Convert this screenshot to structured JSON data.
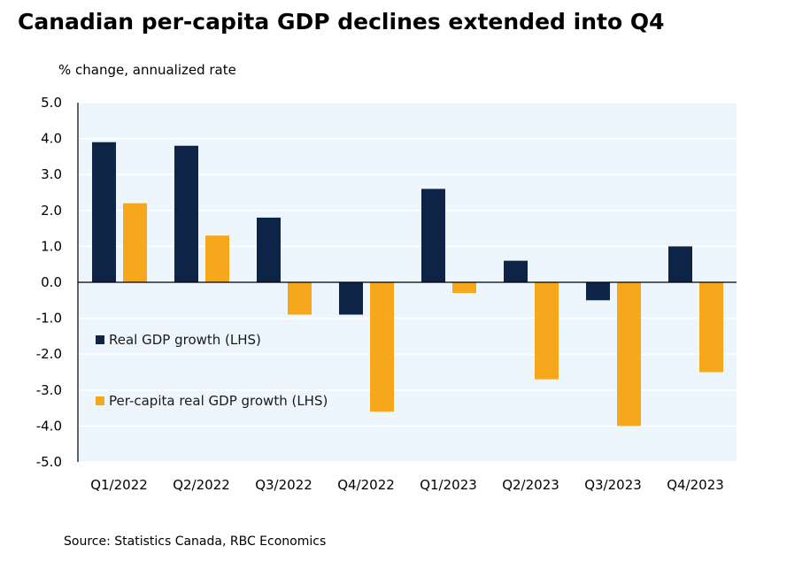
{
  "header": {
    "title": "Canadian per-capita GDP declines extended into Q4",
    "subtitle": "% change, annualized rate"
  },
  "footer": {
    "source": "Source: Statistics Canada, RBC Economics"
  },
  "colors": {
    "real_gdp": "#0d2446",
    "per_capita": "#f7a71b",
    "plot_bg": "#eef6fd",
    "grid": "#ffffff"
  },
  "chart_data": {
    "type": "bar",
    "title": "Canadian per-capita GDP declines extended into Q4",
    "ylabel": "% change, annualized rate",
    "xlabel": "",
    "categories": [
      "Q1/2022",
      "Q2/2022",
      "Q3/2022",
      "Q4/2022",
      "Q1/2023",
      "Q2/2023",
      "Q3/2023",
      "Q4/2023"
    ],
    "series": [
      {
        "name": "Real GDP growth (LHS)",
        "color": "#0d2446",
        "values": [
          3.9,
          3.8,
          1.8,
          -0.9,
          2.6,
          0.6,
          -0.5,
          1.0
        ]
      },
      {
        "name": "Per-capita real GDP growth (LHS)",
        "color": "#f7a71b",
        "values": [
          2.2,
          1.3,
          -0.9,
          -3.6,
          -0.3,
          -2.7,
          -4.0,
          -2.5
        ]
      }
    ],
    "ylim": [
      -5.0,
      5.0
    ],
    "yticks": [
      "5.0",
      "4.0",
      "3.0",
      "2.0",
      "1.0",
      "0.0",
      "-1.0",
      "-2.0",
      "-3.0",
      "-4.0",
      "-5.0"
    ],
    "ytick_values": [
      5,
      4,
      3,
      2,
      1,
      0,
      -1,
      -2,
      -3,
      -4,
      -5
    ],
    "grid": true,
    "legend_position": "left-middle"
  }
}
